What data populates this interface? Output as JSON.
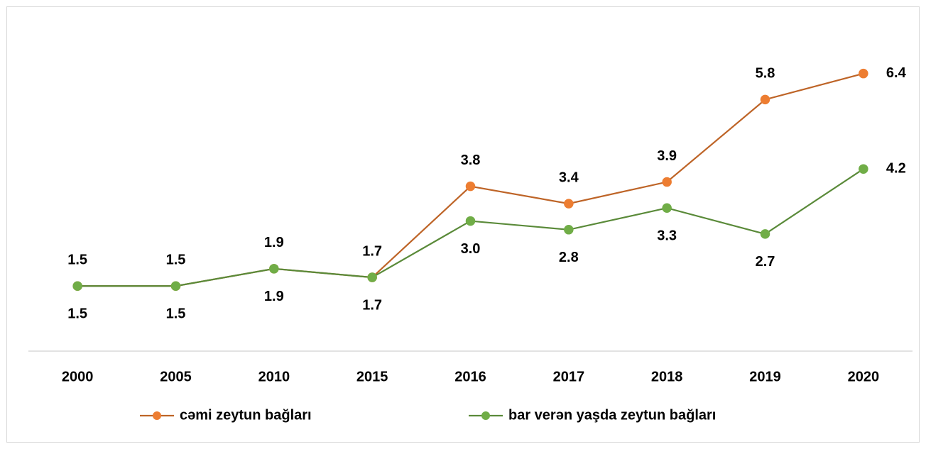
{
  "chart_data": {
    "type": "line",
    "categories": [
      "2000",
      "2005",
      "2010",
      "2015",
      "2016",
      "2017",
      "2018",
      "2019",
      "2020"
    ],
    "series": [
      {
        "name": "cəmi zeytun bağları",
        "color": "#ed7d31",
        "values": [
          1.5,
          1.5,
          1.9,
          1.7,
          3.8,
          3.4,
          3.9,
          5.8,
          6.4
        ],
        "value_labels": [
          "1.5",
          "1.5",
          "1.9",
          "1.7",
          "3.8",
          "3.4",
          "3.9",
          "5.8",
          "6.4"
        ]
      },
      {
        "name": "bar verən yaşda zeytun bağları",
        "color": "#70ad47",
        "values": [
          1.5,
          1.5,
          1.9,
          1.7,
          3.0,
          2.8,
          3.3,
          2.7,
          4.2
        ],
        "value_labels": [
          "1.5",
          "1.5",
          "1.9",
          "1.7",
          "3.0",
          "2.8",
          "3.3",
          "2.7",
          "4.2"
        ]
      }
    ],
    "ylim": [
      0,
      7
    ],
    "legend": "bottom"
  }
}
